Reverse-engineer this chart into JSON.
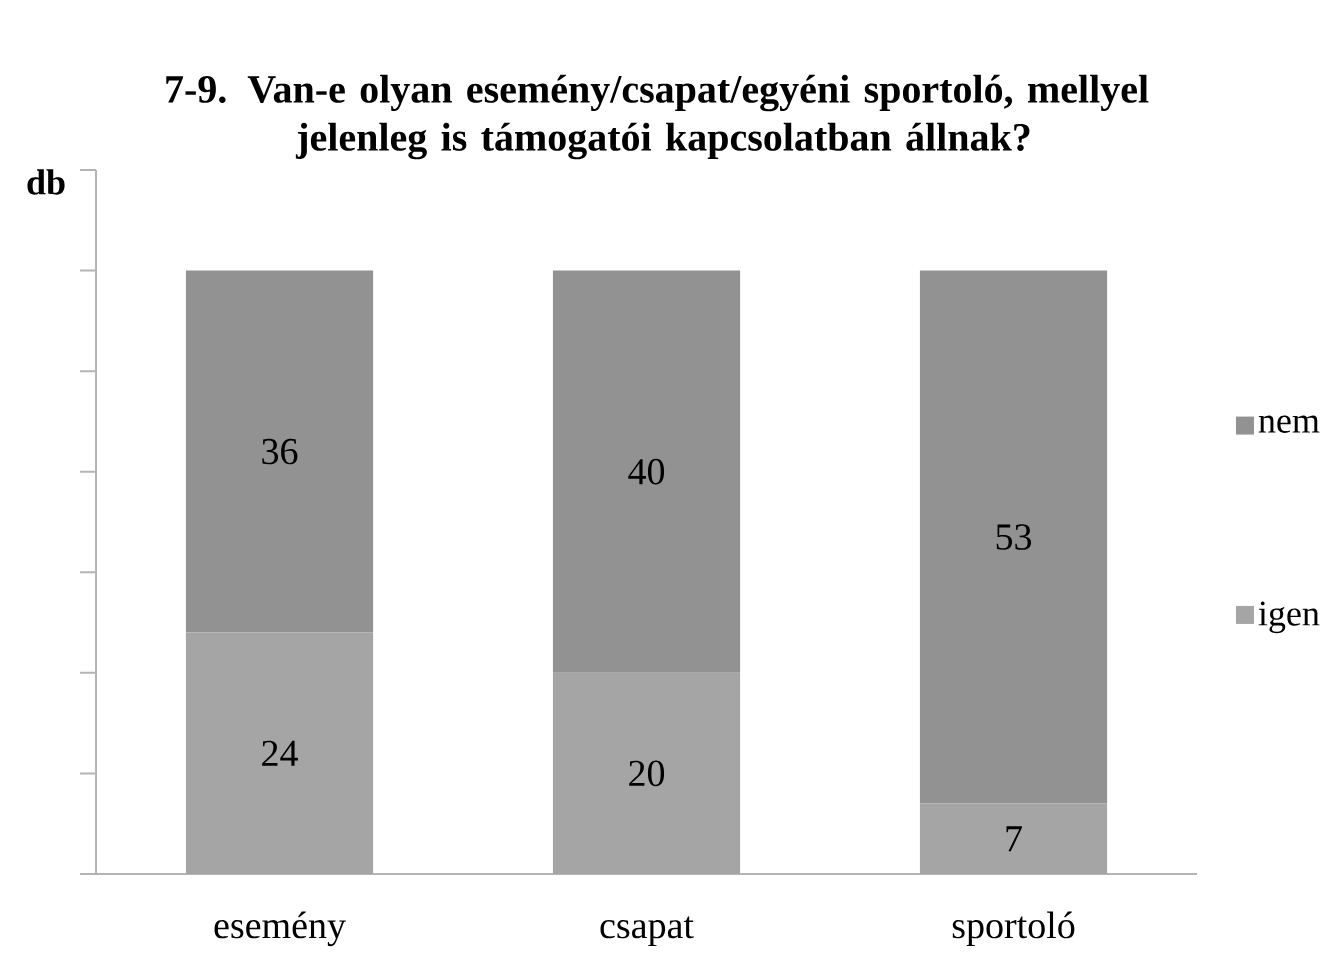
{
  "chart_data": {
    "type": "bar",
    "title": "7-9. Van-e olyan esemény/csapat/egyéni sportoló, mellyel jelenleg is támogatói kapcsolatban állnak?",
    "ylabel": "db",
    "categories": [
      "esemény",
      "csapat",
      "sportoló"
    ],
    "stacked": true,
    "series": [
      {
        "name": "igen",
        "color": "#a5a5a5",
        "values": [
          24,
          20,
          7
        ]
      },
      {
        "name": "nem",
        "color": "#929292",
        "values": [
          36,
          40,
          53
        ]
      }
    ],
    "tick_labels": "x",
    "data_labels": true,
    "legend": "right"
  }
}
